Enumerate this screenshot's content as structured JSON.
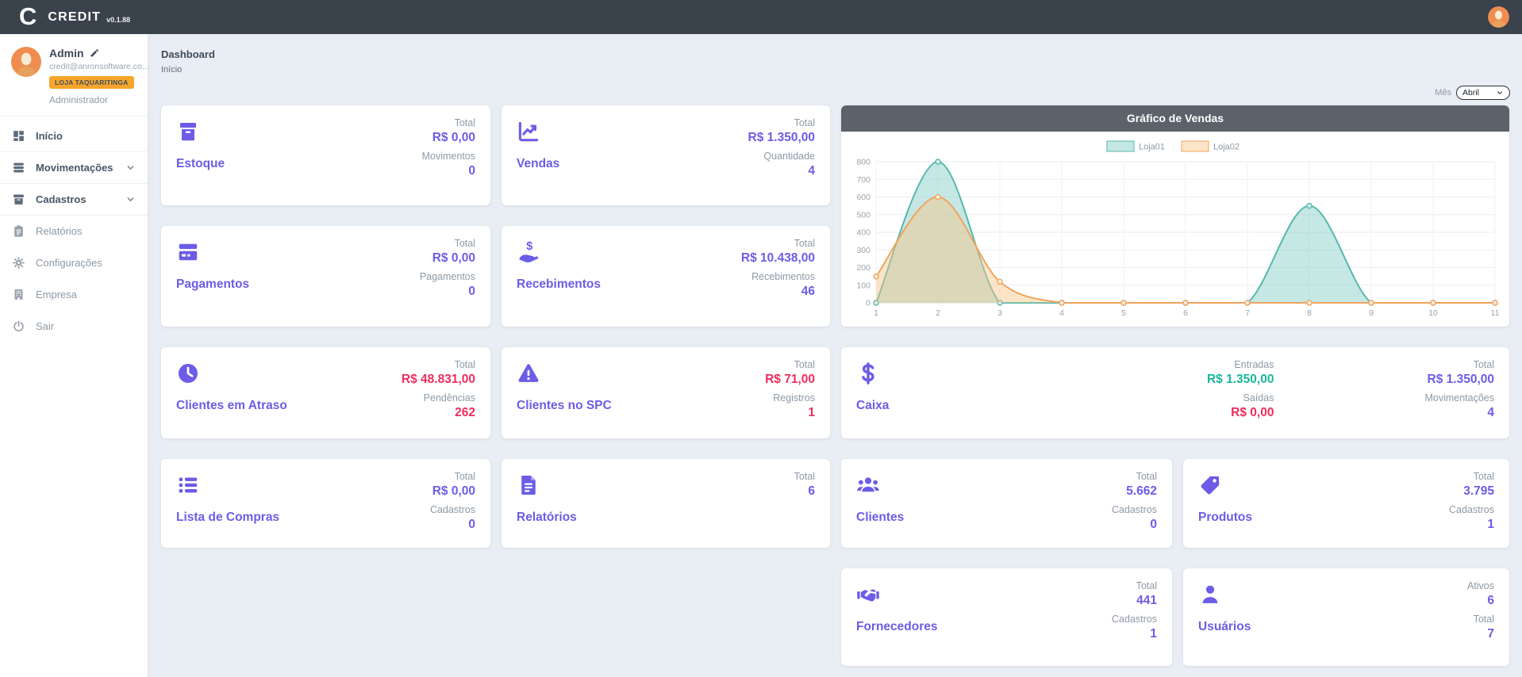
{
  "app": {
    "logo_letter": "C",
    "name": "CREDIT",
    "version": "v0.1.88"
  },
  "palette": {
    "purple": "#6c5ce7",
    "red": "#ee2d5d",
    "green": "#17b79c",
    "badge_orange": "#f7a62b",
    "topbar_bg": "#3a424b",
    "chart_header_bg": "#5b6269"
  },
  "sidebar": {
    "profile": {
      "name": "Admin",
      "email": "credit@anronsoftware.co...",
      "store_badge": "LOJA TAQUARITINGA",
      "role": "Administrador"
    },
    "items": [
      {
        "id": "inicio",
        "label": "Início",
        "icon": "grid-icon",
        "expandable": false
      },
      {
        "id": "movimentacoes",
        "label": "Movimentações",
        "icon": "stack-icon",
        "expandable": true
      },
      {
        "id": "cadastros",
        "label": "Cadastros",
        "icon": "archive-icon",
        "expandable": true
      },
      {
        "id": "relatorios",
        "label": "Relatórios",
        "icon": "clipboard-icon",
        "expandable": false
      },
      {
        "id": "configuracoes",
        "label": "Configurações",
        "icon": "gear-icon",
        "expandable": false
      },
      {
        "id": "empresa",
        "label": "Empresa",
        "icon": "building-icon",
        "expandable": false
      },
      {
        "id": "sair",
        "label": "Sair",
        "icon": "power-icon",
        "expandable": false
      }
    ]
  },
  "page": {
    "title": "Dashboard",
    "breadcrumb": "Início"
  },
  "filter": {
    "label": "Mês",
    "value": "Abril"
  },
  "cards": [
    {
      "id": "estoque",
      "title": "Estoque",
      "icon": "archive-box-icon",
      "stats": [
        [
          {
            "label": "Total",
            "value": "R$ 0,00",
            "color": "purple"
          },
          {
            "label": "Movimentos",
            "value": "0",
            "color": "purple"
          }
        ]
      ]
    },
    {
      "id": "vendas",
      "title": "Vendas",
      "icon": "chart-line-icon",
      "stats": [
        [
          {
            "label": "Total",
            "value": "R$ 1.350,00",
            "color": "purple"
          },
          {
            "label": "Quantidade",
            "value": "4",
            "color": "purple"
          }
        ]
      ]
    },
    {
      "id": "pagamentos",
      "title": "Pagamentos",
      "icon": "credit-card-icon",
      "stats": [
        [
          {
            "label": "Total",
            "value": "R$ 0,00",
            "color": "purple"
          },
          {
            "label": "Pagamentos",
            "value": "0",
            "color": "purple"
          }
        ]
      ]
    },
    {
      "id": "recebimentos",
      "title": "Recebimentos",
      "icon": "hand-dollar-icon",
      "stats": [
        [
          {
            "label": "Total",
            "value": "R$ 10.438,00",
            "color": "purple"
          },
          {
            "label": "Recebimentos",
            "value": "46",
            "color": "purple"
          }
        ]
      ]
    },
    {
      "id": "clientes-atraso",
      "title": "Clientes em Atraso",
      "icon": "clock-icon",
      "stats": [
        [
          {
            "label": "Total",
            "value": "R$ 48.831,00",
            "color": "red"
          },
          {
            "label": "Pendências",
            "value": "262",
            "color": "red"
          }
        ]
      ]
    },
    {
      "id": "clientes-spc",
      "title": "Clientes no SPC",
      "icon": "warning-triangle-icon",
      "stats": [
        [
          {
            "label": "Total",
            "value": "R$ 71,00",
            "color": "red"
          },
          {
            "label": "Registros",
            "value": "1",
            "color": "red"
          }
        ]
      ]
    },
    {
      "id": "caixa",
      "title": "Caixa",
      "icon": "dollar-sign-icon",
      "stats": [
        [
          {
            "label": "Entradas",
            "value": "R$ 1.350,00",
            "color": "green"
          },
          {
            "label": "Saídas",
            "value": "R$ 0,00",
            "color": "red"
          }
        ],
        [
          {
            "label": "Total",
            "value": "R$ 1.350,00",
            "color": "purple"
          },
          {
            "label": "Movimentações",
            "value": "4",
            "color": "purple"
          }
        ]
      ]
    },
    {
      "id": "lista-compras",
      "title": "Lista de Compras",
      "icon": "list-icon",
      "stats": [
        [
          {
            "label": "Total",
            "value": "R$ 0,00",
            "color": "purple"
          },
          {
            "label": "Cadastros",
            "value": "0",
            "color": "purple"
          }
        ]
      ]
    },
    {
      "id": "relatorios",
      "title": "Relatórios",
      "icon": "file-text-icon",
      "stats": [
        [
          {
            "label": "Total",
            "value": "6",
            "color": "purple"
          }
        ]
      ]
    },
    {
      "id": "clientes",
      "title": "Clientes",
      "icon": "users-icon",
      "stats": [
        [
          {
            "label": "Total",
            "value": "5.662",
            "color": "purple"
          },
          {
            "label": "Cadastros",
            "value": "0",
            "color": "purple"
          }
        ]
      ]
    },
    {
      "id": "produtos",
      "title": "Produtos",
      "icon": "tag-icon",
      "stats": [
        [
          {
            "label": "Total",
            "value": "3.795",
            "color": "purple"
          },
          {
            "label": "Cadastros",
            "value": "1",
            "color": "purple"
          }
        ]
      ]
    },
    {
      "id": "fornecedores",
      "title": "Fornecedores",
      "icon": "handshake-icon",
      "stats": [
        [
          {
            "label": "Total",
            "value": "441",
            "color": "purple"
          },
          {
            "label": "Cadastros",
            "value": "1",
            "color": "purple"
          }
        ]
      ]
    },
    {
      "id": "usuarios",
      "title": "Usuários",
      "icon": "user-icon",
      "stats": [
        [
          {
            "label": "Ativos",
            "value": "6",
            "color": "purple"
          },
          {
            "label": "Total",
            "value": "7",
            "color": "purple"
          }
        ]
      ]
    }
  ],
  "chart_data": {
    "type": "area",
    "title": "Gráfico de Vendas",
    "x": [
      1,
      2,
      3,
      4,
      5,
      6,
      7,
      8,
      9,
      10,
      11
    ],
    "series": [
      {
        "name": "Loja01",
        "values": [
          0,
          800,
          0,
          0,
          0,
          0,
          0,
          550,
          0,
          0,
          0
        ],
        "line_color": "#56b8b0",
        "fill_color": "rgba(128,203,196,0.45)",
        "marker_fill": "#dff0ee"
      },
      {
        "name": "Loja02",
        "values": [
          150,
          600,
          120,
          0,
          0,
          0,
          0,
          0,
          0,
          0,
          0
        ],
        "line_color": "#f0a45e",
        "fill_color": "rgba(249,196,134,0.45)",
        "marker_fill": "#fdeedd"
      }
    ],
    "ylim": [
      0,
      800
    ],
    "ytick_step": 100,
    "grid": true,
    "legend_position": "top-center"
  }
}
